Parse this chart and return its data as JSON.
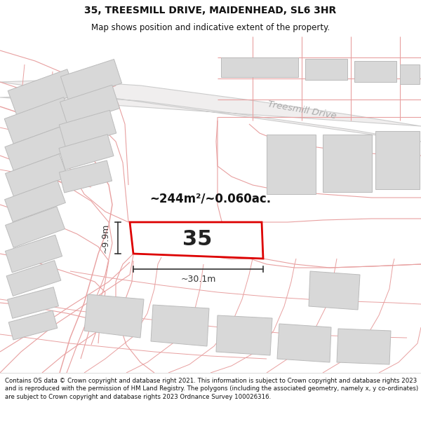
{
  "title_line1": "35, TREESMILL DRIVE, MAIDENHEAD, SL6 3HR",
  "title_line2": "Map shows position and indicative extent of the property.",
  "footer_text": "Contains OS data © Crown copyright and database right 2021. This information is subject to Crown copyright and database rights 2023 and is reproduced with the permission of HM Land Registry. The polygons (including the associated geometry, namely x, y co-ordinates) are subject to Crown copyright and database rights 2023 Ordnance Survey 100026316.",
  "road_label": "Treesmill Drive",
  "plot_number": "35",
  "area_label": "~244m²/~0.060ac.",
  "width_label": "~30.1m",
  "height_label": "~9.9m",
  "map_bg": "#ffffff",
  "plot_fill": "#ffffff",
  "plot_stroke": "#dd0000",
  "building_fill": "#d8d8d8",
  "building_stroke": "#bbbbbb",
  "boundary_color": "#e8a0a0",
  "road_fill": "#eeeeee",
  "road_label_color": "#aaaaaa",
  "dim_color": "#333333",
  "title_fontsize": 10,
  "subtitle_fontsize": 8.5,
  "footer_fontsize": 6.2
}
